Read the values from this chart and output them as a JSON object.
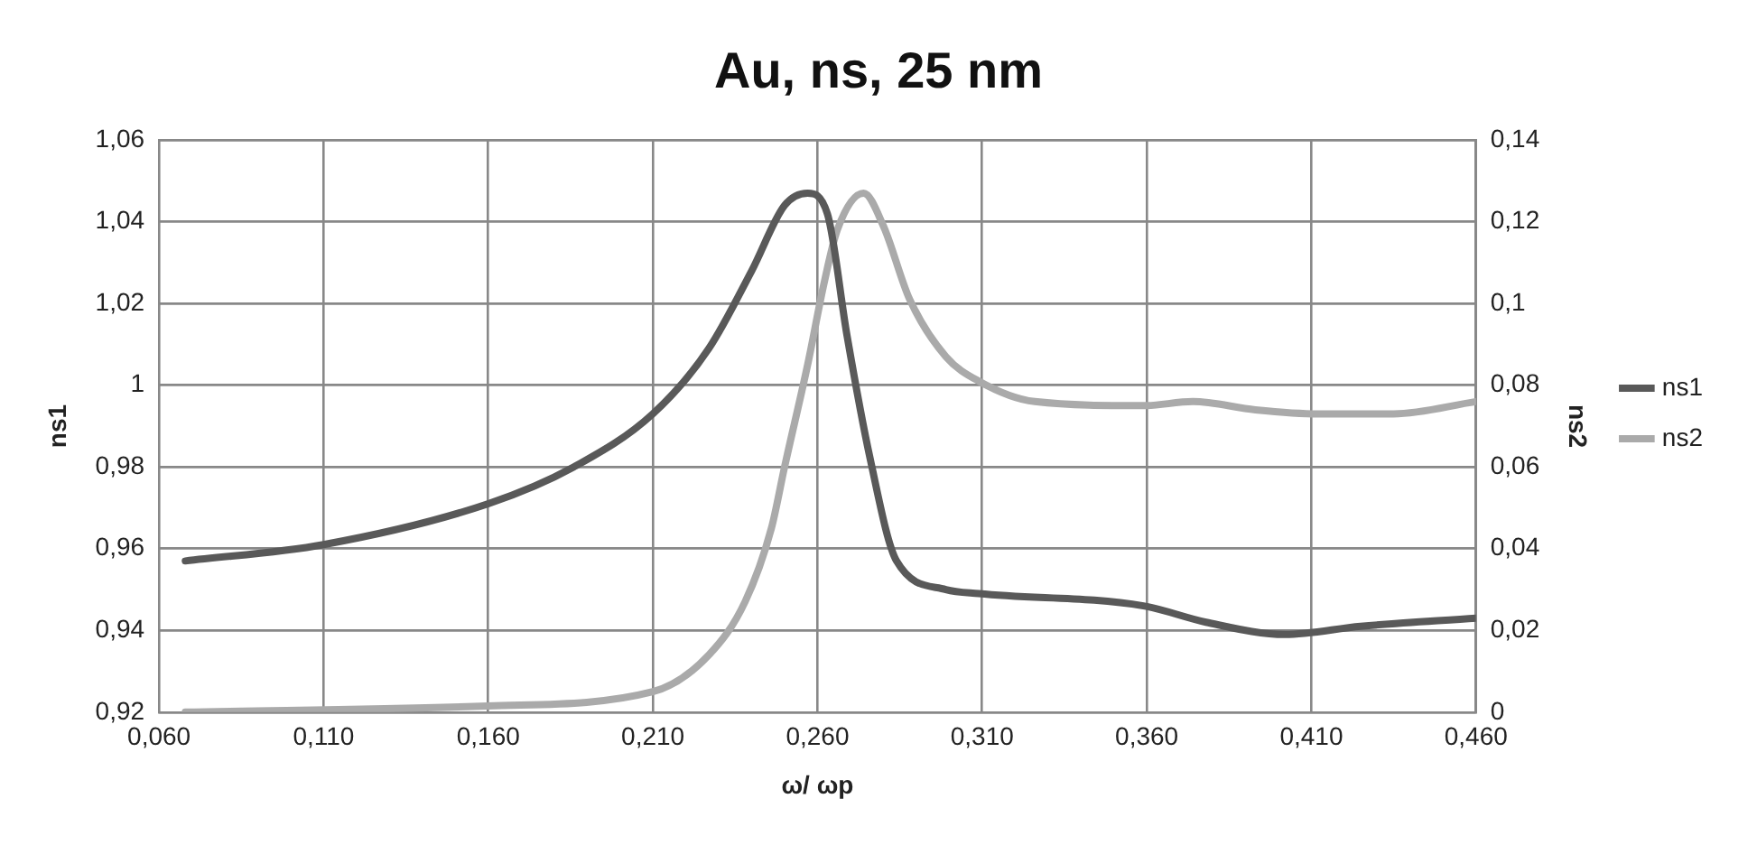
{
  "chart_data": {
    "type": "line",
    "title": "Au, ns, 25 nm",
    "xlabel": "ω/ ωp",
    "ylabel": "ns1",
    "y2label": "ns2",
    "xlim": [
      0.06,
      0.46
    ],
    "xticks": [
      {
        "value": 0.06,
        "label": "0,060"
      },
      {
        "value": 0.11,
        "label": "0,110"
      },
      {
        "value": 0.16,
        "label": "0,160"
      },
      {
        "value": 0.21,
        "label": "0,210"
      },
      {
        "value": 0.26,
        "label": "0,260"
      },
      {
        "value": 0.31,
        "label": "0,310"
      },
      {
        "value": 0.36,
        "label": "0,360"
      },
      {
        "value": 0.41,
        "label": "0,410"
      },
      {
        "value": 0.46,
        "label": "0,460"
      }
    ],
    "ylim": [
      0.92,
      1.06
    ],
    "yticks": [
      {
        "value": 0.92,
        "label": "0,92"
      },
      {
        "value": 0.94,
        "label": "0,94"
      },
      {
        "value": 0.96,
        "label": "0,96"
      },
      {
        "value": 0.98,
        "label": "0,98"
      },
      1,
      {
        "value": 1.02,
        "label": "1,02"
      },
      {
        "value": 1.04,
        "label": "1,04"
      },
      {
        "value": 1.06,
        "label": "1,06"
      }
    ],
    "y2lim": [
      0,
      0.14
    ],
    "y2ticks": [
      0,
      {
        "value": 0.02,
        "label": "0,02"
      },
      {
        "value": 0.04,
        "label": "0,04"
      },
      {
        "value": 0.06,
        "label": "0,06"
      },
      {
        "value": 0.08,
        "label": "0,08"
      },
      {
        "value": 0.1,
        "label": "0,1"
      },
      {
        "value": 0.12,
        "label": "0,12"
      },
      {
        "value": 0.14,
        "label": "0,14"
      }
    ],
    "grid": true,
    "legend": "right",
    "marker": "none",
    "line_style": "solid",
    "series": [
      {
        "name": "ns1",
        "color": "#595959",
        "x": [
          0.068,
          0.11,
          0.16,
          0.186,
          0.21,
          0.227,
          0.24,
          0.25,
          0.257,
          0.263,
          0.269,
          0.276,
          0.284,
          0.299,
          0.309,
          0.359,
          0.378,
          0.402,
          0.425,
          0.46
        ],
        "values": [
          0.957,
          0.961,
          0.971,
          0.98,
          0.993,
          1.009,
          1.028,
          1.044,
          1.047,
          1.042,
          1.012,
          0.982,
          0.957,
          0.95,
          0.949,
          0.946,
          0.942,
          0.939,
          0.941,
          0.943
        ]
      },
      {
        "name": "ns2",
        "color": "#aaaaaa",
        "axis": "y2",
        "x": [
          0.068,
          0.16,
          0.21,
          0.227,
          0.238,
          0.246,
          0.25,
          0.257,
          0.262,
          0.266,
          0.274,
          0.28,
          0.288,
          0.299,
          0.309,
          0.326,
          0.359,
          0.374,
          0.393,
          0.412,
          0.435,
          0.46
        ],
        "values": [
          0,
          0.0015,
          0.005,
          0.014,
          0.027,
          0.045,
          0.06,
          0.085,
          0.105,
          0.118,
          0.127,
          0.119,
          0.101,
          0.087,
          0.081,
          0.076,
          0.075,
          0.076,
          0.074,
          0.073,
          0.073,
          0.076
        ]
      }
    ]
  }
}
